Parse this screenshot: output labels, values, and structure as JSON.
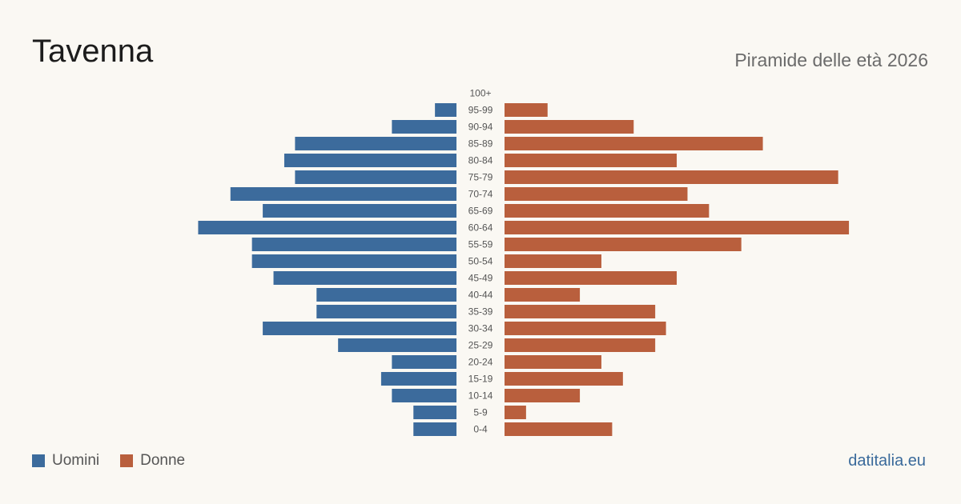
{
  "header": {
    "title": "Tavenna",
    "subtitle": "Piramide delle età 2026"
  },
  "legend": {
    "men_label": "Uomini",
    "women_label": "Donne"
  },
  "footer": {
    "source": "datitalia.eu"
  },
  "colors": {
    "men": "#3c6b9c",
    "women": "#b95f3d",
    "tick_text": "#555555"
  },
  "chart_data": {
    "type": "bar",
    "orientation": "horizontal-pyramid",
    "categories": [
      "100+",
      "95-99",
      "90-94",
      "85-89",
      "80-84",
      "75-79",
      "70-74",
      "65-69",
      "60-64",
      "55-59",
      "50-54",
      "45-49",
      "40-44",
      "35-39",
      "30-34",
      "25-29",
      "20-24",
      "15-19",
      "10-14",
      "5-9",
      "0-4"
    ],
    "series": [
      {
        "name": "Uomini",
        "values": [
          0,
          2,
          6,
          15,
          16,
          15,
          21,
          18,
          24,
          19,
          19,
          17,
          13,
          13,
          18,
          11,
          6,
          7,
          6,
          4,
          4
        ]
      },
      {
        "name": "Donne",
        "values": [
          0,
          4,
          12,
          24,
          16,
          31,
          17,
          19,
          32,
          22,
          9,
          16,
          7,
          14,
          15,
          14,
          9,
          11,
          7,
          2,
          10
        ]
      }
    ],
    "legend_position": "bottom-left",
    "grid": false
  }
}
